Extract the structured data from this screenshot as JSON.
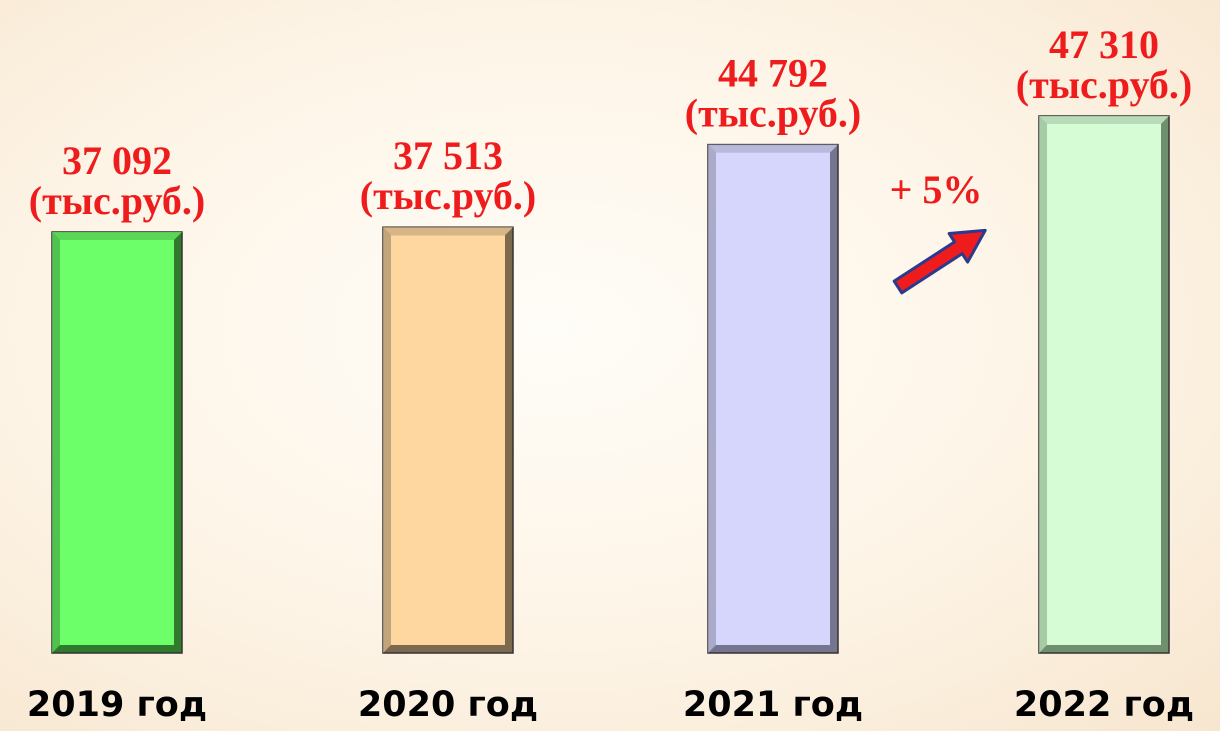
{
  "chart_data": {
    "type": "bar",
    "categories": [
      "2019 год",
      "2020 год",
      "2021 год",
      "2022 год"
    ],
    "values": [
      37092,
      37513,
      44792,
      47310
    ],
    "value_labels": [
      "37 092",
      "37 513",
      "44 792",
      "47 310"
    ],
    "unit_label": "(тыс.руб.)",
    "bar_colors": [
      "#6cff6a",
      "#fdd6a0",
      "#d6d6fc",
      "#d5fcd5"
    ],
    "bar_edge_colors": [
      "#2f7a2d",
      "#7d6a4e",
      "#75758f",
      "#6f8f6f"
    ],
    "ylim": [
      0,
      60000
    ],
    "grid": false,
    "legend": "none",
    "annotation": {
      "text": "+ 5%",
      "color": "#ee1c1c",
      "arrow_color": "#ee1c1c",
      "arrow_outline": "#2b3a8f"
    },
    "title": "",
    "xlabel": "",
    "ylabel": ""
  }
}
